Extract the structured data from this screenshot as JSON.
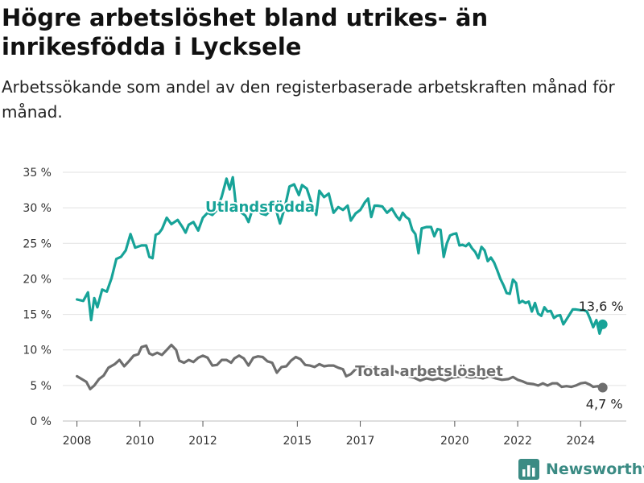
{
  "header": {
    "title": "Högre arbetslöshet bland utrikes- än inrikesfödda i Lycksele",
    "subtitle": "Arbetssökande som andel av den registerbaserade arbetskraften månad för månad."
  },
  "brand": {
    "name": "Newsworthy",
    "icon": "bar-chart-logo-icon",
    "color": "#3b8b84"
  },
  "chart_data": {
    "type": "line",
    "ylim": [
      0,
      35
    ],
    "yticks": [
      0,
      5,
      10,
      15,
      20,
      25,
      30,
      35
    ],
    "ytick_labels": [
      "0 %",
      "5 %",
      "10 %",
      "15 %",
      "20 %",
      "25 %",
      "30 %",
      "35 %"
    ],
    "xlim": [
      2007.55,
      2025.45
    ],
    "xticks": [
      2008,
      2010,
      2012,
      2015,
      2017,
      2020,
      2022,
      2024
    ],
    "xtick_labels": [
      "2008",
      "2010",
      "2012",
      "2015",
      "2017",
      "2020",
      "2022",
      "2024"
    ],
    "grid": true,
    "series": [
      {
        "name": "Utlandsfödda",
        "color": "#17a398",
        "end_label": "13,6 %",
        "points": [
          [
            2008.0,
            17.1
          ],
          [
            2008.2,
            16.9
          ],
          [
            2008.35,
            18.1
          ],
          [
            2008.45,
            14.2
          ],
          [
            2008.55,
            17.3
          ],
          [
            2008.65,
            16.0
          ],
          [
            2008.8,
            18.5
          ],
          [
            2008.95,
            18.2
          ],
          [
            2009.1,
            20.1
          ],
          [
            2009.25,
            22.8
          ],
          [
            2009.4,
            23.1
          ],
          [
            2009.55,
            24.0
          ],
          [
            2009.7,
            26.3
          ],
          [
            2009.85,
            24.4
          ],
          [
            2010.05,
            24.7
          ],
          [
            2010.2,
            24.7
          ],
          [
            2010.3,
            23.1
          ],
          [
            2010.4,
            22.9
          ],
          [
            2010.5,
            26.2
          ],
          [
            2010.6,
            26.4
          ],
          [
            2010.7,
            27.0
          ],
          [
            2010.85,
            28.6
          ],
          [
            2011.0,
            27.7
          ],
          [
            2011.2,
            28.3
          ],
          [
            2011.35,
            27.3
          ],
          [
            2011.45,
            26.5
          ],
          [
            2011.55,
            27.6
          ],
          [
            2011.7,
            28.0
          ],
          [
            2011.85,
            26.8
          ],
          [
            2012.0,
            28.6
          ],
          [
            2012.15,
            29.3
          ],
          [
            2012.3,
            29.0
          ],
          [
            2012.45,
            29.7
          ],
          [
            2012.6,
            31.6
          ],
          [
            2012.75,
            34.1
          ],
          [
            2012.85,
            32.6
          ],
          [
            2012.95,
            34.3
          ],
          [
            2013.05,
            30.3
          ],
          [
            2013.2,
            29.4
          ],
          [
            2013.35,
            28.9
          ],
          [
            2013.45,
            28.0
          ],
          [
            2013.55,
            29.4
          ],
          [
            2013.7,
            30.0
          ],
          [
            2013.85,
            29.2
          ],
          [
            2014.0,
            29.0
          ],
          [
            2014.15,
            29.6
          ],
          [
            2014.3,
            30.1
          ],
          [
            2014.45,
            27.8
          ],
          [
            2014.6,
            30.0
          ],
          [
            2014.75,
            33.0
          ],
          [
            2014.9,
            33.3
          ],
          [
            2015.05,
            31.8
          ],
          [
            2015.15,
            33.2
          ],
          [
            2015.3,
            32.7
          ],
          [
            2015.45,
            30.7
          ],
          [
            2015.6,
            29.0
          ],
          [
            2015.7,
            32.4
          ],
          [
            2015.85,
            31.5
          ],
          [
            2016.0,
            32.0
          ],
          [
            2016.15,
            29.3
          ],
          [
            2016.3,
            30.1
          ],
          [
            2016.45,
            29.7
          ],
          [
            2016.6,
            30.3
          ],
          [
            2016.7,
            28.2
          ],
          [
            2016.85,
            29.2
          ],
          [
            2017.0,
            29.7
          ],
          [
            2017.15,
            30.8
          ],
          [
            2017.25,
            31.3
          ],
          [
            2017.35,
            28.7
          ],
          [
            2017.45,
            30.3
          ],
          [
            2017.55,
            30.3
          ],
          [
            2017.7,
            30.2
          ],
          [
            2017.85,
            29.3
          ],
          [
            2018.0,
            29.9
          ],
          [
            2018.15,
            28.8
          ],
          [
            2018.25,
            28.3
          ],
          [
            2018.35,
            29.3
          ],
          [
            2018.45,
            28.7
          ],
          [
            2018.55,
            28.4
          ],
          [
            2018.65,
            26.9
          ],
          [
            2018.75,
            26.3
          ],
          [
            2018.85,
            23.6
          ],
          [
            2018.95,
            27.1
          ],
          [
            2019.1,
            27.3
          ],
          [
            2019.25,
            27.3
          ],
          [
            2019.35,
            26.0
          ],
          [
            2019.45,
            27.0
          ],
          [
            2019.55,
            26.9
          ],
          [
            2019.65,
            23.1
          ],
          [
            2019.75,
            25.0
          ],
          [
            2019.85,
            26.1
          ],
          [
            2019.95,
            26.3
          ],
          [
            2020.05,
            26.4
          ],
          [
            2020.15,
            24.7
          ],
          [
            2020.25,
            24.8
          ],
          [
            2020.35,
            24.6
          ],
          [
            2020.45,
            25.0
          ],
          [
            2020.55,
            24.3
          ],
          [
            2020.65,
            23.8
          ],
          [
            2020.75,
            22.9
          ],
          [
            2020.85,
            24.5
          ],
          [
            2020.95,
            24.0
          ],
          [
            2021.05,
            22.5
          ],
          [
            2021.15,
            23.0
          ],
          [
            2021.25,
            22.3
          ],
          [
            2021.35,
            21.2
          ],
          [
            2021.45,
            20.0
          ],
          [
            2021.55,
            19.1
          ],
          [
            2021.65,
            18.0
          ],
          [
            2021.75,
            17.9
          ],
          [
            2021.85,
            19.9
          ],
          [
            2021.95,
            19.4
          ],
          [
            2022.05,
            16.6
          ],
          [
            2022.15,
            16.9
          ],
          [
            2022.25,
            16.6
          ],
          [
            2022.35,
            16.8
          ],
          [
            2022.45,
            15.4
          ],
          [
            2022.55,
            16.6
          ],
          [
            2022.65,
            15.1
          ],
          [
            2022.75,
            14.8
          ],
          [
            2022.85,
            16.0
          ],
          [
            2022.95,
            15.4
          ],
          [
            2023.05,
            15.5
          ],
          [
            2023.15,
            14.5
          ],
          [
            2023.25,
            14.8
          ],
          [
            2023.35,
            14.9
          ],
          [
            2023.45,
            13.6
          ],
          [
            2023.55,
            14.3
          ],
          [
            2023.65,
            15.0
          ],
          [
            2023.75,
            15.7
          ],
          [
            2023.85,
            15.7
          ],
          [
            2024.0,
            15.6
          ],
          [
            2024.1,
            15.6
          ],
          [
            2024.2,
            15.4
          ],
          [
            2024.3,
            14.4
          ],
          [
            2024.4,
            13.2
          ],
          [
            2024.5,
            14.2
          ],
          [
            2024.6,
            12.3
          ],
          [
            2024.7,
            13.6
          ]
        ]
      },
      {
        "name": "Total arbetslöshet",
        "color": "#6e6e6e",
        "end_label": "4,7 %",
        "points": [
          [
            2008.0,
            6.3
          ],
          [
            2008.15,
            5.9
          ],
          [
            2008.3,
            5.5
          ],
          [
            2008.42,
            4.5
          ],
          [
            2008.55,
            5.0
          ],
          [
            2008.7,
            5.9
          ],
          [
            2008.85,
            6.4
          ],
          [
            2009.0,
            7.5
          ],
          [
            2009.2,
            8.0
          ],
          [
            2009.35,
            8.6
          ],
          [
            2009.5,
            7.7
          ],
          [
            2009.65,
            8.4
          ],
          [
            2009.8,
            9.2
          ],
          [
            2009.95,
            9.4
          ],
          [
            2010.05,
            10.4
          ],
          [
            2010.2,
            10.6
          ],
          [
            2010.3,
            9.5
          ],
          [
            2010.4,
            9.3
          ],
          [
            2010.55,
            9.6
          ],
          [
            2010.7,
            9.3
          ],
          [
            2010.85,
            10.0
          ],
          [
            2011.0,
            10.7
          ],
          [
            2011.15,
            10.0
          ],
          [
            2011.25,
            8.5
          ],
          [
            2011.4,
            8.2
          ],
          [
            2011.55,
            8.6
          ],
          [
            2011.7,
            8.3
          ],
          [
            2011.85,
            8.9
          ],
          [
            2012.0,
            9.2
          ],
          [
            2012.15,
            8.9
          ],
          [
            2012.3,
            7.8
          ],
          [
            2012.45,
            7.9
          ],
          [
            2012.6,
            8.6
          ],
          [
            2012.75,
            8.6
          ],
          [
            2012.9,
            8.2
          ],
          [
            2013.0,
            8.8
          ],
          [
            2013.15,
            9.2
          ],
          [
            2013.3,
            8.8
          ],
          [
            2013.45,
            7.8
          ],
          [
            2013.6,
            8.9
          ],
          [
            2013.75,
            9.1
          ],
          [
            2013.9,
            9.0
          ],
          [
            2014.05,
            8.4
          ],
          [
            2014.2,
            8.2
          ],
          [
            2014.35,
            6.8
          ],
          [
            2014.5,
            7.6
          ],
          [
            2014.65,
            7.7
          ],
          [
            2014.8,
            8.5
          ],
          [
            2014.95,
            9.0
          ],
          [
            2015.1,
            8.7
          ],
          [
            2015.25,
            7.9
          ],
          [
            2015.4,
            7.8
          ],
          [
            2015.55,
            7.6
          ],
          [
            2015.7,
            8.0
          ],
          [
            2015.85,
            7.7
          ],
          [
            2016.0,
            7.8
          ],
          [
            2016.15,
            7.8
          ],
          [
            2016.3,
            7.5
          ],
          [
            2016.45,
            7.3
          ],
          [
            2016.55,
            6.3
          ],
          [
            2016.7,
            6.6
          ],
          [
            2016.85,
            7.3
          ],
          [
            2017.0,
            7.7
          ],
          [
            2017.15,
            7.6
          ],
          [
            2017.3,
            7.5
          ],
          [
            2017.5,
            7.3
          ],
          [
            2017.7,
            7.1
          ],
          [
            2017.9,
            7.3
          ],
          [
            2018.1,
            7.0
          ],
          [
            2018.3,
            6.6
          ],
          [
            2018.5,
            6.3
          ],
          [
            2018.7,
            6.1
          ],
          [
            2018.9,
            5.7
          ],
          [
            2019.1,
            6.0
          ],
          [
            2019.3,
            5.8
          ],
          [
            2019.5,
            6.0
          ],
          [
            2019.7,
            5.7
          ],
          [
            2019.9,
            6.1
          ],
          [
            2020.1,
            6.2
          ],
          [
            2020.3,
            6.3
          ],
          [
            2020.5,
            6.1
          ],
          [
            2020.7,
            6.2
          ],
          [
            2020.9,
            6.0
          ],
          [
            2021.1,
            6.3
          ],
          [
            2021.3,
            6.0
          ],
          [
            2021.5,
            5.8
          ],
          [
            2021.7,
            5.9
          ],
          [
            2021.85,
            6.2
          ],
          [
            2022.0,
            5.8
          ],
          [
            2022.15,
            5.6
          ],
          [
            2022.3,
            5.3
          ],
          [
            2022.5,
            5.2
          ],
          [
            2022.65,
            5.0
          ],
          [
            2022.8,
            5.3
          ],
          [
            2022.95,
            5.0
          ],
          [
            2023.1,
            5.3
          ],
          [
            2023.25,
            5.3
          ],
          [
            2023.4,
            4.8
          ],
          [
            2023.55,
            4.9
          ],
          [
            2023.7,
            4.8
          ],
          [
            2023.85,
            5.0
          ],
          [
            2024.0,
            5.3
          ],
          [
            2024.15,
            5.4
          ],
          [
            2024.3,
            5.1
          ],
          [
            2024.4,
            4.8
          ],
          [
            2024.55,
            4.9
          ],
          [
            2024.62,
            4.6
          ],
          [
            2024.7,
            4.7
          ]
        ]
      }
    ]
  }
}
